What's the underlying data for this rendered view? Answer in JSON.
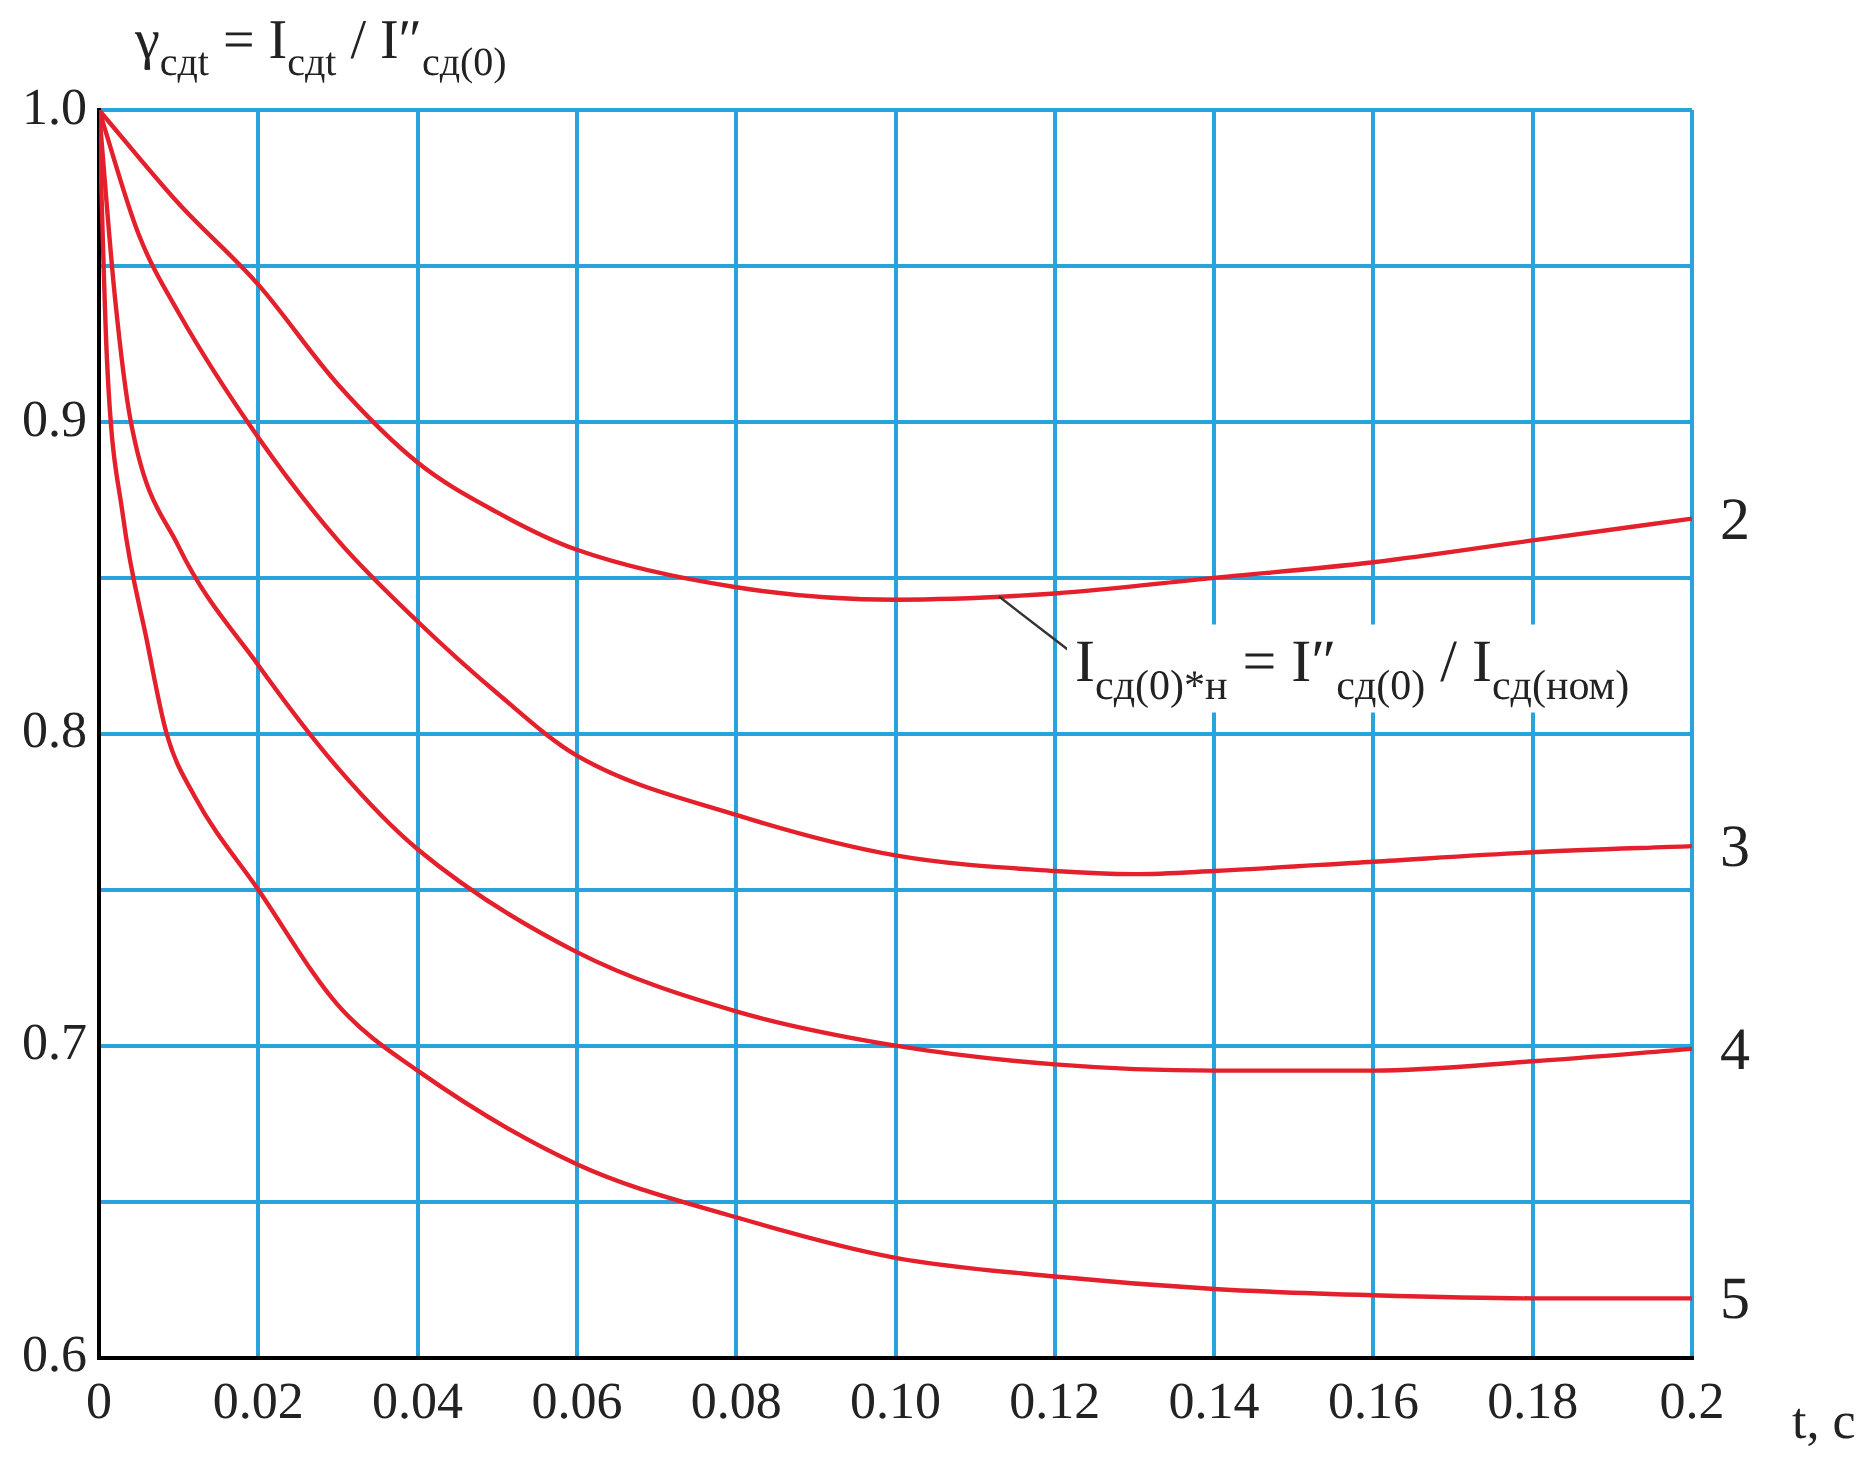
{
  "chart_data": {
    "type": "line",
    "ylabel": "γ$_{сдt}$ = I$_{сдt}$ / I″$_{сд(0)}$",
    "xlabel": "t, с",
    "annotations": [
      {
        "text": "I$_{сд(0)*н}$ = I″$_{сд(0)}$ / I$_{сд(ном)}$",
        "x": 0.113,
        "y": 0.844
      }
    ],
    "xlim": [
      0,
      0.2
    ],
    "ylim": [
      0.6,
      1.0
    ],
    "xticks": [
      0,
      0.02,
      0.04,
      0.06,
      0.08,
      {
        "value": 0.1,
        "label": "0.10"
      },
      0.12,
      0.14,
      0.16,
      0.18,
      0.2
    ],
    "yticks": [
      0.6,
      {
        "value": 0.65,
        "label": null
      },
      0.7,
      {
        "value": 0.75,
        "label": null
      },
      0.8,
      {
        "value": 0.85,
        "label": null
      },
      0.9,
      {
        "value": 0.95,
        "label": null
      },
      {
        "value": 1,
        "label": "1.0"
      }
    ],
    "grid": true,
    "legend": false,
    "marker": "none",
    "line_style": "solid",
    "series": [
      {
        "name": "2",
        "color": "#e3202b",
        "x": [
          0,
          0.01,
          0.02,
          0.03,
          0.04,
          0.05,
          0.06,
          0.08,
          0.1,
          0.12,
          0.14,
          0.16,
          0.18,
          0.2
        ],
        "values": [
          1,
          0.97,
          0.944,
          0.912,
          0.887,
          0.871,
          0.859,
          0.847,
          0.843,
          0.845,
          0.85,
          0.855,
          0.862,
          0.869
        ]
      },
      {
        "name": "3",
        "color": "#e3202b",
        "x": [
          0,
          0.005,
          0.01,
          0.02,
          0.03,
          0.04,
          0.05,
          0.06,
          0.08,
          0.1,
          0.12,
          0.13,
          0.14,
          0.16,
          0.18,
          0.2
        ],
        "values": [
          1,
          0.96,
          0.935,
          0.895,
          0.862,
          0.836,
          0.813,
          0.793,
          0.774,
          0.761,
          0.756,
          0.755,
          0.756,
          0.759,
          0.762,
          0.764
        ]
      },
      {
        "name": "4",
        "color": "#e3202b",
        "x": [
          0,
          0.002,
          0.004,
          0.01,
          0.02,
          0.03,
          0.04,
          0.06,
          0.08,
          0.1,
          0.12,
          0.14,
          0.16,
          0.18,
          0.2
        ],
        "values": [
          1,
          0.94,
          0.9,
          0.86,
          0.822,
          0.789,
          0.763,
          0.73,
          0.711,
          0.7,
          0.694,
          0.692,
          0.692,
          0.695,
          0.699
        ]
      },
      {
        "name": "5",
        "color": "#e3202b",
        "x": [
          0,
          0.001,
          0.003,
          0.006,
          0.0085,
          0.012,
          0.02,
          0.03,
          0.04,
          0.06,
          0.08,
          0.1,
          0.12,
          0.14,
          0.16,
          0.18,
          0.2
        ],
        "values": [
          1,
          0.92,
          0.87,
          0.83,
          0.8,
          0.78,
          0.75,
          0.713,
          0.692,
          0.662,
          0.645,
          0.632,
          0.626,
          0.622,
          0.62,
          0.619,
          0.619
        ]
      }
    ]
  }
}
